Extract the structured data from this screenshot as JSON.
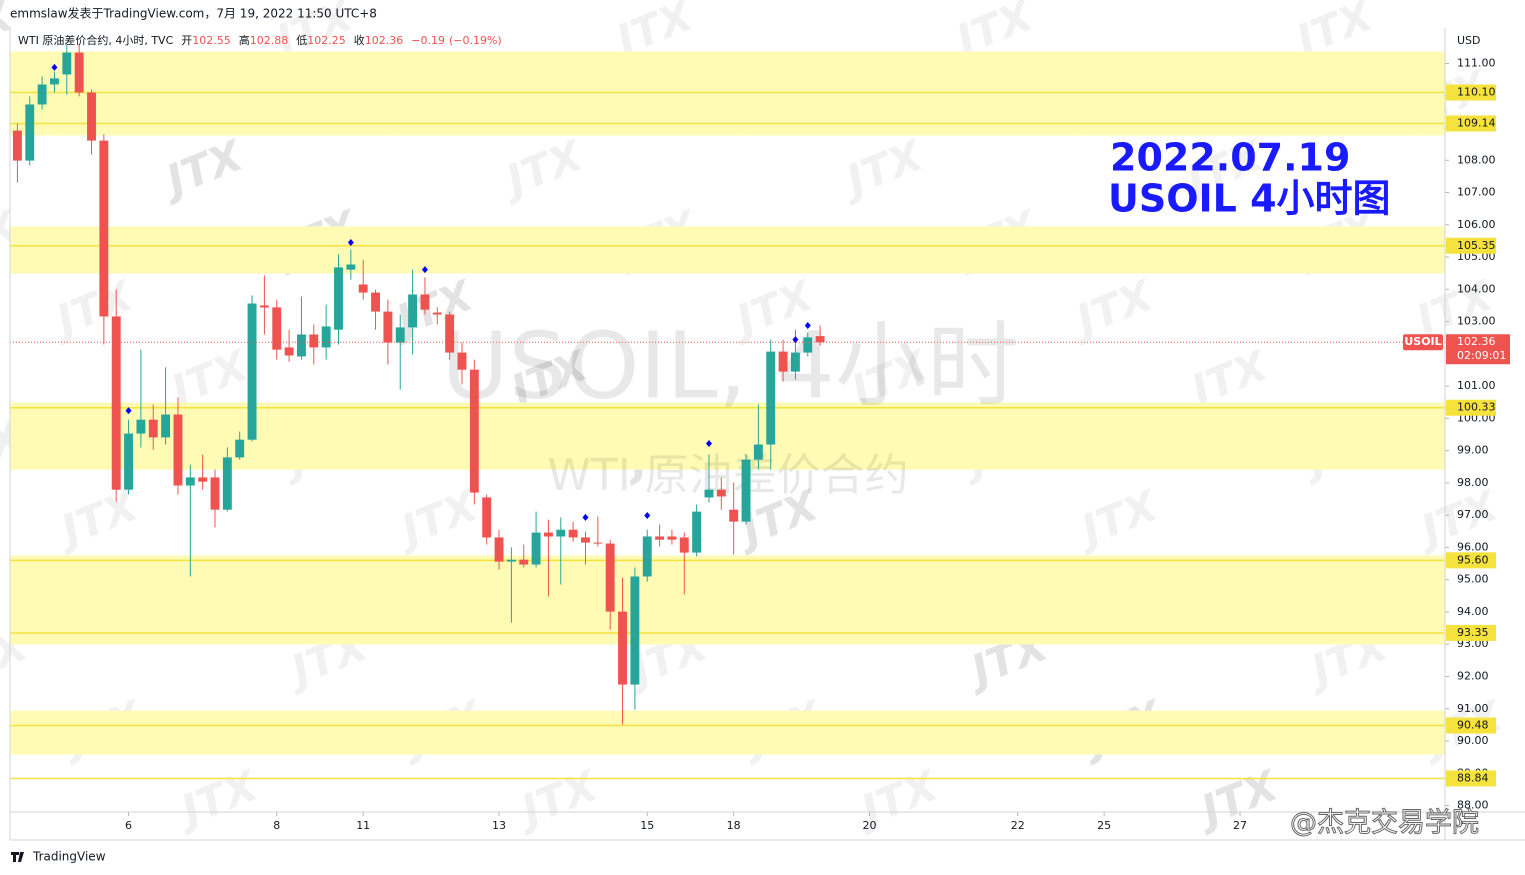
{
  "chart_data": {
    "type": "candlestick",
    "header": "emmslaw发表于TradingView.com，7月 19, 2022 11:50 UTC+8",
    "title": "WTI 原油差价合约, 4小时, TVC",
    "ohlc_legend": {
      "labels": [
        "开",
        "高",
        "低",
        "收"
      ],
      "values": [
        102.55,
        102.88,
        102.25,
        102.36
      ],
      "change": {
        "value": -0.19,
        "label": "−0.19"
      },
      "change_pct": {
        "value": -0.19,
        "label": "(−0.19%)"
      }
    },
    "annotations": [
      "2022.07.19",
      "USOIL 4小时图"
    ],
    "watermarks": [
      "USOIL, 4小时",
      "WTI 原油差价合约"
    ],
    "logo_watermark": "JTX",
    "credit": "@杰克交易学院",
    "brand": "TradingView",
    "y_unit": "USD",
    "symbol": "USOIL",
    "last_price": 102.36,
    "countdown": "02:09:01",
    "up_color": "#26a69a",
    "down_color": "#ef5350",
    "open": [
      108.92,
      107.99,
      109.73,
      110.35,
      110.66,
      111.34,
      110.1,
      108.61,
      103.16,
      97.79,
      99.53,
      99.96,
      99.41,
      100.12,
      97.92,
      98.17,
      98.17,
      97.17,
      98.79,
      99.34,
      103.5,
      103.44,
      102.2,
      101.92,
      102.6,
      102.2,
      102.75,
      104.61,
      104.15,
      103.9,
      103.31,
      102.35,
      102.82,
      103.84,
      103.28,
      103.22,
      102.04,
      101.51,
      97.55,
      96.31,
      95.56,
      95.62,
      95.47,
      96.46,
      96.34,
      96.55,
      96.31,
      96.15,
      96.12,
      94.01,
      91.75,
      95.1,
      96.34,
      96.34,
      96.31,
      95.84,
      97.55,
      97.79,
      97.17,
      96.8,
      98.72,
      99.19,
      102.07,
      101.45,
      102.04,
      102.55
    ],
    "high": [
      109.14,
      109.98,
      110.6,
      110.75,
      111.59,
      111.59,
      110.19,
      108.8,
      103.99,
      99.96,
      102.13,
      100.43,
      101.58,
      100.65,
      98.57,
      98.88,
      98.41,
      99.1,
      99.59,
      103.81,
      104.43,
      103.68,
      102.75,
      103.78,
      102.91,
      103.53,
      105.08,
      105.23,
      104.92,
      103.99,
      103.68,
      103.22,
      104.61,
      104.37,
      103.44,
      103.31,
      102.35,
      101.82,
      97.64,
      96.55,
      96.0,
      96.09,
      97.11,
      96.86,
      96.93,
      96.8,
      96.49,
      96.96,
      96.24,
      95.07,
      95.38,
      96.55,
      96.71,
      96.55,
      96.46,
      97.33,
      98.88,
      98.17,
      98.01,
      98.88,
      100.43,
      102.44,
      102.44,
      102.75,
      102.66,
      102.88
    ],
    "low": [
      107.31,
      107.84,
      109.57,
      110.1,
      110.04,
      109.98,
      108.18,
      102.29,
      97.42,
      97.64,
      99.1,
      99.03,
      99.19,
      97.64,
      95.1,
      97.79,
      96.62,
      97.11,
      98.72,
      99.28,
      102.6,
      101.82,
      101.76,
      101.82,
      101.67,
      101.82,
      102.29,
      104.3,
      103.68,
      102.75,
      101.67,
      100.89,
      101.98,
      103.22,
      102.91,
      101.82,
      101.05,
      97.33,
      96.09,
      95.31,
      93.67,
      95.38,
      95.38,
      94.48,
      94.85,
      96.18,
      95.47,
      96.03,
      93.45,
      90.51,
      90.97,
      94.94,
      96.03,
      96.09,
      94.54,
      95.72,
      97.39,
      97.17,
      95.78,
      96.71,
      98.41,
      98.41,
      101.14,
      101.2,
      101.92,
      102.25
    ],
    "close": [
      107.99,
      109.73,
      110.35,
      110.54,
      111.34,
      110.1,
      108.61,
      103.16,
      97.79,
      99.53,
      99.96,
      99.41,
      100.12,
      97.92,
      98.17,
      98.04,
      97.17,
      98.79,
      99.34,
      103.56,
      103.44,
      102.13,
      101.95,
      102.6,
      102.2,
      102.85,
      104.68,
      104.77,
      103.9,
      103.31,
      102.35,
      102.82,
      103.84,
      103.37,
      103.22,
      102.04,
      101.51,
      97.7,
      96.31,
      95.56,
      95.62,
      95.47,
      96.46,
      96.34,
      96.55,
      96.31,
      96.15,
      96.12,
      94.01,
      91.75,
      95.1,
      96.34,
      96.24,
      96.24,
      95.84,
      97.11,
      97.79,
      97.58,
      96.8,
      98.72,
      99.19,
      102.07,
      101.45,
      102.04,
      102.51,
      102.36
    ],
    "markers": {
      "x": [
        3,
        9,
        27,
        33,
        46,
        51,
        56,
        63,
        64
      ],
      "values": [
        110.88,
        100.24,
        105.45,
        104.61,
        96.93,
        96.99,
        99.22,
        102.44,
        102.88
      ],
      "color": "#0000ff"
    },
    "zones": [
      [
        108.77,
        111.37
      ],
      [
        104.49,
        105.95
      ],
      [
        98.41,
        100.49
      ],
      [
        92.99,
        95.75
      ],
      [
        89.58,
        90.94
      ]
    ],
    "zone_color": "#fffbb4",
    "levels": [
      {
        "value": 110.1,
        "label": "110.10"
      },
      109.14,
      105.35,
      100.33,
      {
        "value": 95.6,
        "label": "95.60"
      },
      93.35,
      90.48,
      88.84
    ],
    "level_color": "#f5e23c",
    "xlim": [
      -0.6,
      115.6
    ],
    "xticks": [
      {
        "value": 9,
        "label": "6"
      },
      {
        "value": 21,
        "label": "8"
      },
      {
        "value": 28,
        "label": "11"
      },
      {
        "value": 39,
        "label": "13"
      },
      {
        "value": 51,
        "label": "15"
      },
      {
        "value": 58,
        "label": "18"
      },
      {
        "value": 69,
        "label": "20"
      },
      {
        "value": 81,
        "label": "22"
      },
      {
        "value": 88,
        "label": "25"
      },
      {
        "value": 99,
        "label": "27"
      }
    ],
    "ylim": [
      87.8,
      112.1
    ],
    "yticks": [
      {
        "value": 88,
        "label": "88.00"
      },
      {
        "value": 89,
        "label": "89.00"
      },
      {
        "value": 90,
        "label": "90.00"
      },
      {
        "value": 91,
        "label": "91.00"
      },
      {
        "value": 92,
        "label": "92.00"
      },
      {
        "value": 93,
        "label": "93.00"
      },
      {
        "value": 94,
        "label": "94.00"
      },
      {
        "value": 95,
        "label": "95.00"
      },
      {
        "value": 96,
        "label": "96.00"
      },
      {
        "value": 97,
        "label": "97.00"
      },
      {
        "value": 98,
        "label": "98.00"
      },
      {
        "value": 99,
        "label": "99.00"
      },
      {
        "value": 100,
        "label": "100.00"
      },
      {
        "value": 101,
        "label": "101.00"
      },
      {
        "value": 102,
        "label": "102.00"
      },
      {
        "value": 103,
        "label": "103.00"
      },
      {
        "value": 104,
        "label": "104.00"
      },
      {
        "value": 105,
        "label": "105.00"
      },
      {
        "value": 106,
        "label": "106.00"
      },
      {
        "value": 107,
        "label": "107.00"
      },
      {
        "value": 108,
        "label": "108.00"
      },
      {
        "value": 109,
        "label": "109.00"
      },
      {
        "value": 110,
        "label": "110.00"
      },
      {
        "value": 111,
        "label": "111.00"
      }
    ]
  }
}
